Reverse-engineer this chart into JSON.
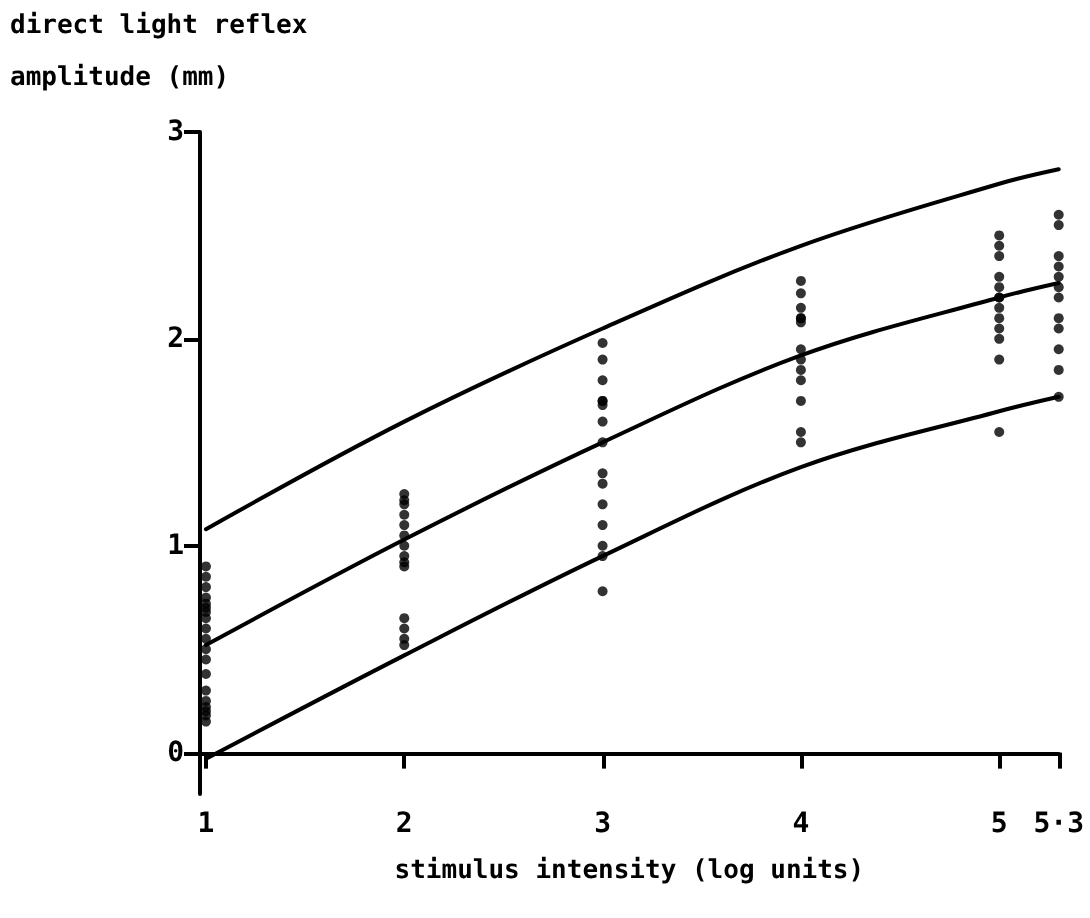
{
  "chart_data": {
    "type": "scatter",
    "ylabel": "direct light reflex\namplitude (mm)",
    "xlabel": "stimulus intensity (log units)",
    "xlim": [
      0.97,
      5.3
    ],
    "xticks": [
      1,
      2,
      3,
      4,
      5,
      {
        "value": 5.3,
        "label": "5·3"
      }
    ],
    "ylim": [
      -0.2,
      3
    ],
    "yticks": [
      0,
      1,
      2,
      3
    ],
    "grid": false,
    "marker": "circle",
    "series": [
      {
        "color": "#000000",
        "x": [
          1,
          1,
          1,
          1,
          1,
          1,
          1,
          1,
          1,
          1,
          1,
          1,
          1,
          1,
          1,
          1,
          1,
          1,
          1,
          2,
          2,
          2,
          2,
          2,
          2,
          2,
          2,
          2,
          2,
          2,
          2,
          2,
          2,
          3,
          3,
          3,
          3,
          3,
          3,
          3,
          3,
          3,
          3,
          3,
          3,
          3,
          3,
          3,
          4,
          4,
          4,
          4,
          4,
          4,
          4,
          4,
          4,
          4,
          4,
          4,
          4,
          5,
          5,
          5,
          5,
          5,
          5,
          5,
          5,
          5,
          5,
          5,
          5,
          5,
          5.3,
          5.3,
          5.3,
          5.3,
          5.3,
          5.3,
          5.3,
          5.3,
          5.3,
          5.3,
          5.3,
          5.3
        ],
        "values": [
          0.9,
          0.85,
          0.8,
          0.75,
          0.72,
          0.7,
          0.68,
          0.65,
          0.6,
          0.55,
          0.5,
          0.45,
          0.38,
          0.3,
          0.25,
          0.22,
          0.2,
          0.18,
          0.15,
          1.25,
          1.22,
          1.2,
          1.15,
          1.1,
          1.05,
          1.0,
          0.95,
          0.9,
          0.92,
          0.65,
          0.6,
          0.55,
          0.52,
          1.98,
          1.9,
          1.8,
          1.7,
          1.7,
          1.68,
          1.6,
          1.5,
          1.35,
          1.3,
          1.2,
          1.1,
          1.0,
          0.95,
          0.78,
          2.28,
          2.22,
          2.15,
          2.1,
          2.1,
          2.08,
          1.95,
          1.9,
          1.85,
          1.8,
          1.7,
          1.55,
          1.5,
          2.5,
          2.45,
          2.4,
          2.3,
          2.25,
          2.2,
          2.2,
          2.15,
          2.1,
          2.05,
          2.0,
          1.9,
          1.55,
          2.6,
          2.55,
          2.4,
          2.35,
          2.3,
          2.25,
          2.2,
          2.1,
          2.05,
          1.95,
          1.85,
          1.72
        ]
      },
      {
        "type": "line",
        "color": "#000000",
        "marker": "none",
        "x": [
          1,
          2,
          3,
          4,
          5,
          5.3
        ],
        "values": [
          1.08,
          1.6,
          2.05,
          2.45,
          2.75,
          2.82
        ]
      },
      {
        "type": "line",
        "color": "#000000",
        "marker": "none",
        "x": [
          1,
          2,
          3,
          4,
          5,
          5.3
        ],
        "values": [
          0.52,
          1.03,
          1.5,
          1.92,
          2.2,
          2.27
        ]
      },
      {
        "type": "line",
        "color": "#000000",
        "marker": "none",
        "x": [
          1,
          2,
          3,
          4,
          5,
          5.3
        ],
        "values": [
          -0.03,
          0.47,
          0.95,
          1.38,
          1.65,
          1.72
        ]
      }
    ]
  }
}
